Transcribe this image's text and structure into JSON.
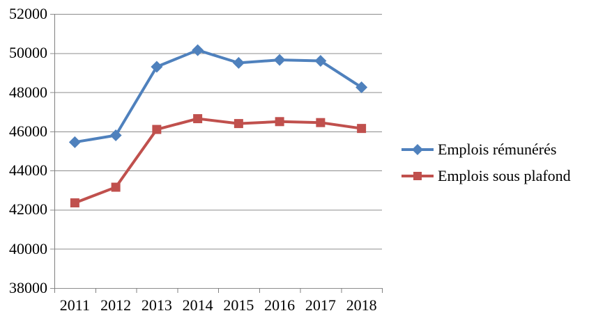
{
  "chart_data": {
    "type": "line",
    "categories": [
      "2011",
      "2012",
      "2013",
      "2014",
      "2015",
      "2016",
      "2017",
      "2018"
    ],
    "series": [
      {
        "name": "Emplois rémunérés",
        "marker": "diamond",
        "color": "#4F81BD",
        "values": [
          45450,
          45800,
          49300,
          50150,
          49500,
          49650,
          49600,
          48250
        ]
      },
      {
        "name": "Emplois sous plafond",
        "marker": "square",
        "color": "#C0504D",
        "values": [
          42350,
          43150,
          46100,
          46650,
          46400,
          46500,
          46450,
          46150
        ]
      }
    ],
    "title": "",
    "xlabel": "",
    "ylabel": "",
    "ylim": [
      38000,
      52000
    ],
    "ytick_step": 2000,
    "yticks": [
      "52000",
      "50000",
      "48000",
      "46000",
      "44000",
      "42000",
      "40000",
      "38000"
    ],
    "grid": true,
    "legend_position": "right",
    "grid_color": "#8C8C8C",
    "axis_color": "#808080",
    "text_color": "#000000",
    "background": "#FFFFFF"
  }
}
